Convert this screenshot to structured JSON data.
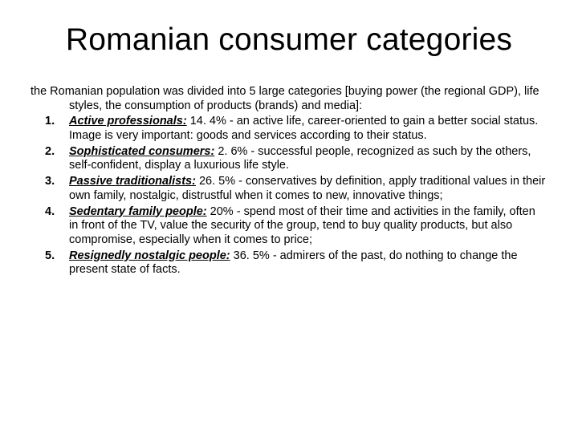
{
  "title": "Romanian consumer categories",
  "intro": "the Romanian population was divided into 5 large categories [buying power (the regional GDP), life styles, the consumption of products (brands) and media]:",
  "items": [
    {
      "label": "Active professionals:",
      "text": " 14. 4% - an active life, career-oriented to gain a better social status. Image is very important: goods and services according to their status."
    },
    {
      "label": "Sophisticated consumers:",
      "text": " 2. 6% - successful people, recognized as such by the others, self-confident, display a luxurious life style."
    },
    {
      "label": "Passive traditionalists:",
      "text": " 26. 5% - conservatives by definition, apply traditional values in their own family, nostalgic, distrustful when it comes to new, innovative things;"
    },
    {
      "label": "Sedentary family people:",
      "text": " 20% - spend most of their time and activities in the family, often in front of the TV, value the security of the group, tend to buy quality products, but also compromise, especially when it comes to price;"
    },
    {
      "label": "Resignedly nostalgic people:",
      "text": " 36. 5% - admirers of the past, do nothing to change the present state of facts."
    }
  ]
}
